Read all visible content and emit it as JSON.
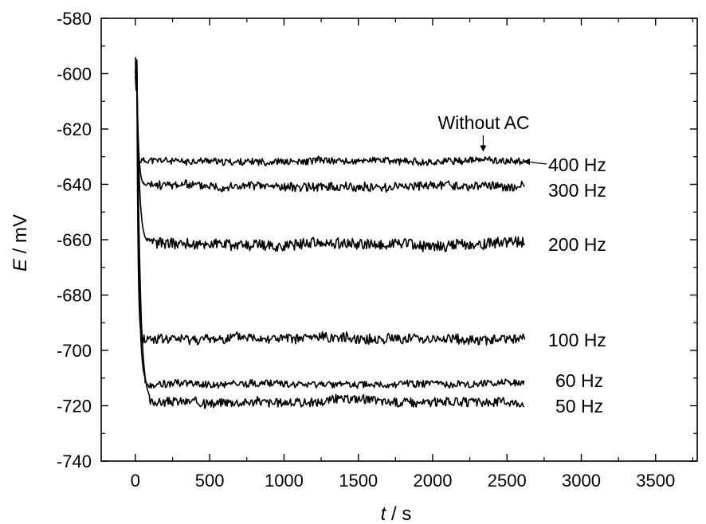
{
  "chart_data": {
    "type": "line",
    "title": "",
    "xlabel_var": "t",
    "xlabel_unit": " / s",
    "ylabel_var": "E",
    "ylabel_unit": " / mV",
    "xlim": [
      -230,
      3780
    ],
    "ylim": [
      -740,
      -580
    ],
    "x_ticks": [
      0,
      500,
      1000,
      1500,
      2000,
      2500,
      3000,
      3500
    ],
    "x_tick_labels": [
      "0",
      "500",
      "1000",
      "1500",
      "2000",
      "2500",
      "3000",
      "3500"
    ],
    "y_ticks": [
      -580,
      -600,
      -620,
      -640,
      -660,
      -680,
      -700,
      -720,
      -740
    ],
    "y_tick_labels": [
      "-580",
      "-600",
      "-620",
      "-640",
      "-660",
      "-680",
      "-700",
      "-720",
      "-740"
    ],
    "grid": false,
    "colors": {
      "line": "#000000",
      "axis": "#000000",
      "background": "#ffffff"
    },
    "series": [
      {
        "name": "400 Hz",
        "t_start": 0,
        "t_end": 2620,
        "E_start": -600,
        "E_plateau": -631.5,
        "settle_s": 15,
        "noise_mV": 1.2,
        "seed": 11
      },
      {
        "name": "300 Hz",
        "t_start": 0,
        "t_end": 2620,
        "E_start": -601,
        "E_plateau": -640.5,
        "settle_s": 45,
        "noise_mV": 1.6,
        "seed": 23
      },
      {
        "name": "200 Hz",
        "t_start": 0,
        "t_end": 2620,
        "E_start": -603,
        "E_plateau": -661.5,
        "settle_s": 70,
        "noise_mV": 2.0,
        "seed": 37
      },
      {
        "name": "100 Hz",
        "t_start": 0,
        "t_end": 2620,
        "E_start": -601,
        "E_plateau": -696,
        "settle_s": 30,
        "noise_mV": 1.8,
        "seed": 41
      },
      {
        "name": "60 Hz",
        "t_start": 0,
        "t_end": 2620,
        "E_start": -598,
        "E_plateau": -712,
        "settle_s": 55,
        "noise_mV": 1.3,
        "seed": 53
      },
      {
        "name": "50 Hz",
        "t_start": 0,
        "t_end": 2620,
        "E_start": -596,
        "E_plateau": -718.5,
        "settle_s": 85,
        "noise_mV": 1.6,
        "seed": 67
      }
    ],
    "series_labels": [
      "400 Hz",
      "300 Hz",
      "200 Hz",
      "100 Hz",
      "60 Hz",
      "50 Hz"
    ],
    "annotations": [
      {
        "text": "Without AC",
        "arrow_to_t": 2340,
        "arrow_to_E": -628.5
      }
    ]
  }
}
